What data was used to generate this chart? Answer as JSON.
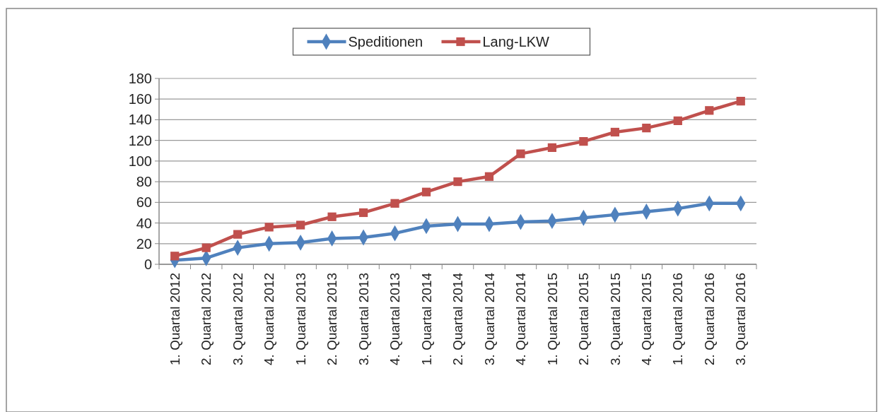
{
  "chart_data": {
    "type": "line",
    "categories": [
      "1. Quartal 2012",
      "2. Quartal 2012",
      "3. Quartal 2012",
      "4. Quartal 2012",
      "1. Quartal 2013",
      "2. Quartal 2013",
      "3. Quartal 2013",
      "4. Quartal 2013",
      "1. Quartal 2014",
      "2. Quartal 2014",
      "3. Quartal 2014",
      "4. Quartal 2014",
      "1. Quartal 2015",
      "2. Quartal 2015",
      "3. Quartal 2015",
      "4. Quartal 2015",
      "1. Quartal 2016",
      "2. Quartal 2016",
      "3. Quartal 2016"
    ],
    "series": [
      {
        "name": "Speditionen",
        "color": "#4f81bd",
        "marker": "diamond",
        "values": [
          4,
          6,
          16,
          20,
          21,
          25,
          26,
          30,
          37,
          39,
          39,
          41,
          42,
          45,
          48,
          51,
          54,
          59,
          59
        ]
      },
      {
        "name": "Lang-LKW",
        "color": "#c0504d",
        "marker": "square",
        "values": [
          8,
          16,
          29,
          36,
          38,
          46,
          50,
          59,
          70,
          80,
          85,
          107,
          113,
          119,
          128,
          132,
          139,
          149,
          158
        ]
      }
    ],
    "ylim": [
      0,
      180
    ],
    "yticks": [
      0,
      20,
      40,
      60,
      80,
      100,
      120,
      140,
      160,
      180
    ],
    "grid": "y",
    "legend": "top"
  }
}
